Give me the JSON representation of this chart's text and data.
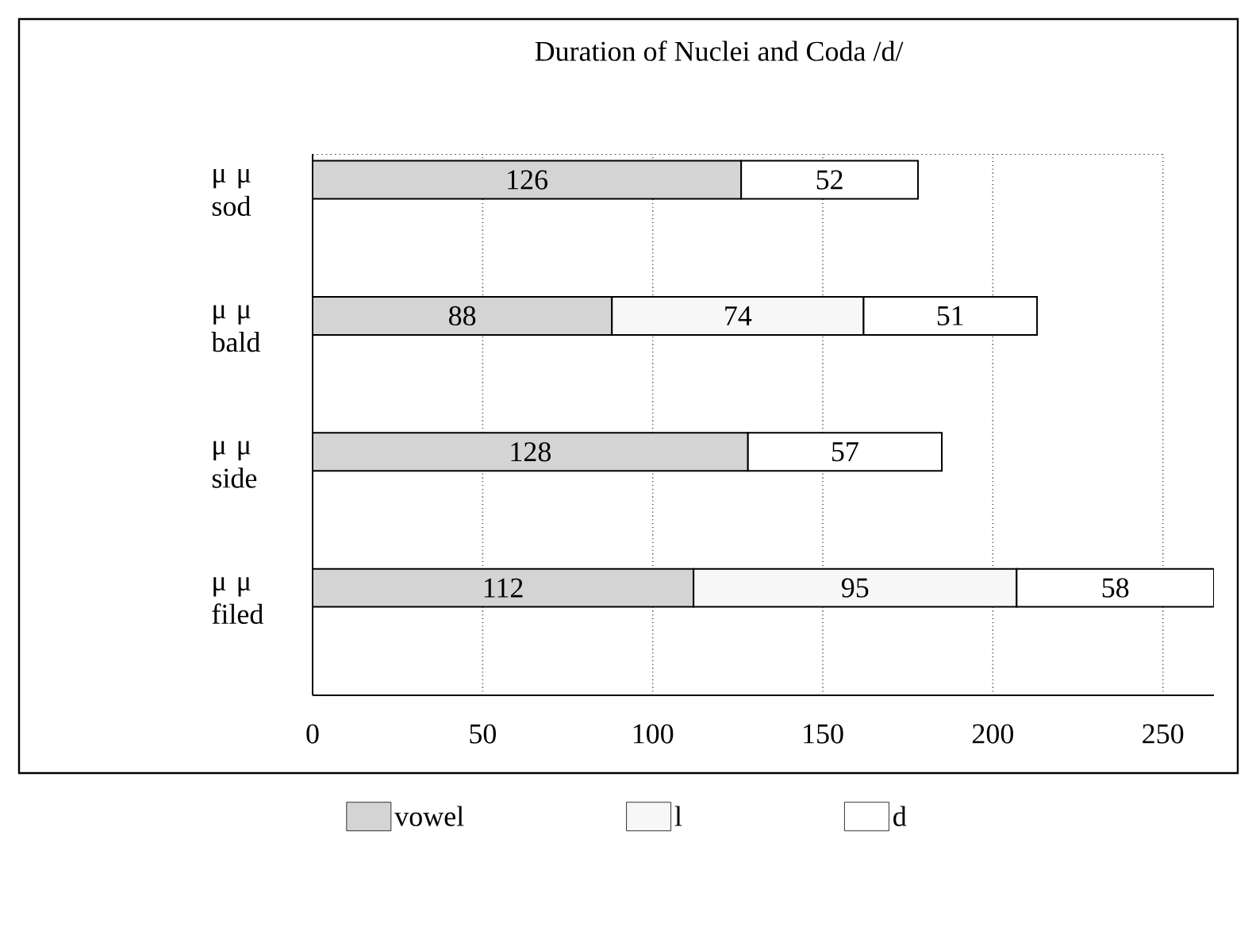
{
  "chart_data": {
    "type": "bar",
    "orientation": "horizontal",
    "stacked": true,
    "title": "Duration of Nuclei and Coda /d/",
    "categories": [
      "μ μ sod",
      "μ μ bald",
      "μ μ side",
      "μ μ filed"
    ],
    "series": [
      {
        "name": "vowel",
        "color": "#d4d4d4",
        "values": [
          126,
          88,
          128,
          112
        ]
      },
      {
        "name": "l",
        "color": "#f7f7f7",
        "values": [
          null,
          74,
          null,
          95
        ]
      },
      {
        "name": "d",
        "color": "#ffffff",
        "values": [
          52,
          51,
          57,
          58
        ]
      }
    ],
    "xlim": [
      0,
      265
    ],
    "xticks": [
      0,
      50,
      100,
      150,
      200,
      250
    ],
    "grid": "x",
    "legend": "bottom",
    "data_labels": true
  }
}
